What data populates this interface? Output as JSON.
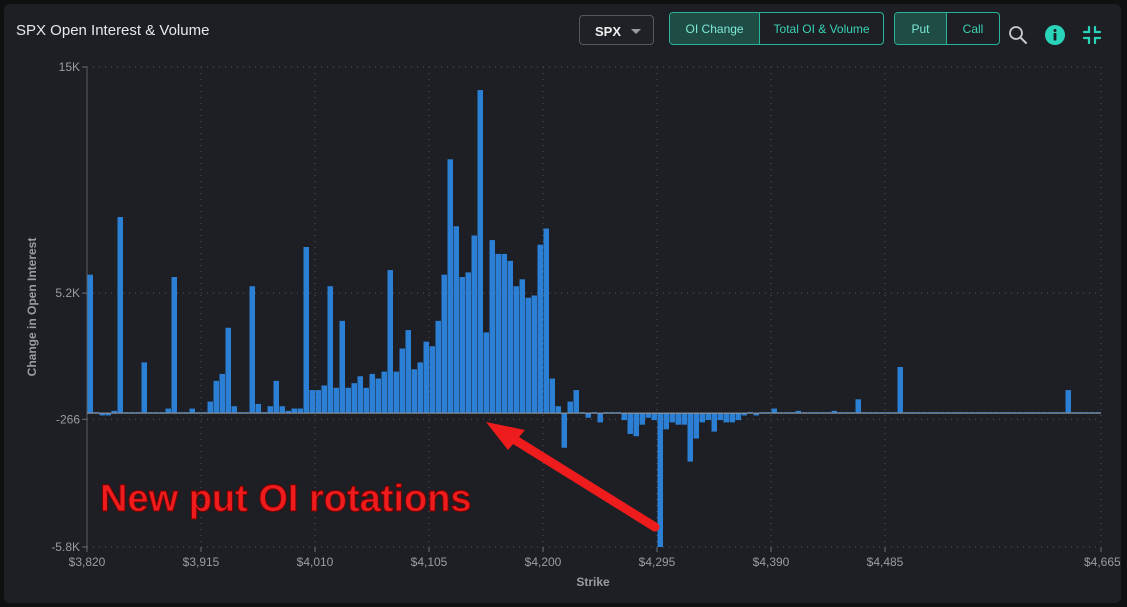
{
  "header": {
    "title": "SPX Open Interest & Volume",
    "ticker": "SPX",
    "view_toggle": {
      "options": [
        "OI Change",
        "Total OI & Volume"
      ],
      "selected": "OI Change"
    },
    "type_toggle": {
      "options": [
        "Put",
        "Call"
      ],
      "selected": "Put"
    },
    "icons": [
      "zoom-icon",
      "info-icon",
      "collapse-icon"
    ],
    "colors": {
      "accent": "#2bb39a",
      "info": "#2ad4b8"
    }
  },
  "chart_data": {
    "type": "bar",
    "xlabel": "Strike",
    "ylabel": "Change in Open Interest",
    "ylim": [
      -5800,
      15000
    ],
    "xlim": [
      3820,
      4665
    ],
    "x_ticks": [
      3820,
      3915,
      4010,
      4105,
      4200,
      4295,
      4390,
      4485,
      4665
    ],
    "x_tick_labels": [
      "$3,820",
      "$3,915",
      "$4,010",
      "$4,105",
      "$4,200",
      "$4,295",
      "$4,390",
      "$4,485",
      "$4,665"
    ],
    "y_ticks": [
      -5800,
      -266,
      5200,
      15000
    ],
    "y_tick_labels": [
      "-5.8K",
      "-266",
      "5.2K",
      "15K"
    ],
    "grid": true,
    "bar_color": "#2b7fd4",
    "annotation": {
      "text": "New put OI rotations",
      "color": "#ee1c1c"
    },
    "strikes": [
      3820,
      3825,
      3830,
      3835,
      3840,
      3845,
      3850,
      3855,
      3860,
      3865,
      3870,
      3875,
      3880,
      3885,
      3890,
      3895,
      3900,
      3905,
      3910,
      3915,
      3920,
      3925,
      3930,
      3935,
      3940,
      3945,
      3950,
      3955,
      3960,
      3965,
      3970,
      3975,
      3980,
      3985,
      3990,
      3995,
      4000,
      4005,
      4010,
      4015,
      4020,
      4025,
      4030,
      4035,
      4040,
      4045,
      4050,
      4055,
      4060,
      4065,
      4070,
      4075,
      4080,
      4085,
      4090,
      4095,
      4100,
      4105,
      4110,
      4115,
      4120,
      4125,
      4130,
      4135,
      4140,
      4145,
      4150,
      4155,
      4160,
      4165,
      4170,
      4175,
      4180,
      4185,
      4190,
      4195,
      4200,
      4205,
      4210,
      4215,
      4220,
      4225,
      4230,
      4235,
      4240,
      4245,
      4250,
      4255,
      4260,
      4265,
      4270,
      4275,
      4280,
      4285,
      4290,
      4295,
      4300,
      4305,
      4310,
      4315,
      4320,
      4325,
      4330,
      4335,
      4340,
      4345,
      4350,
      4355,
      4360,
      4365,
      4370,
      4375,
      4380,
      4385,
      4390,
      4395,
      4400,
      4405,
      4410,
      4415,
      4420,
      4425,
      4430,
      4435,
      4440,
      4445,
      4450,
      4455,
      4460,
      4465,
      4470,
      4475,
      4480,
      4485,
      4490,
      4495,
      4500,
      4505,
      4510,
      4515,
      4520,
      4525,
      4530,
      4535,
      4540,
      4545,
      4550,
      4555,
      4560,
      4565,
      4570,
      4575,
      4580,
      4585,
      4590,
      4595,
      4600,
      4605,
      4610,
      4615,
      4620,
      4625,
      4630,
      4635,
      4640,
      4645,
      4650,
      4655,
      4660
    ],
    "values": [
      6000,
      0,
      -100,
      -100,
      100,
      8500,
      0,
      0,
      0,
      2200,
      0,
      0,
      0,
      200,
      5900,
      0,
      0,
      200,
      0,
      0,
      500,
      1400,
      1700,
      3700,
      300,
      0,
      0,
      5500,
      400,
      0,
      300,
      1400,
      300,
      100,
      200,
      200,
      7200,
      1000,
      1000,
      1200,
      5500,
      1100,
      4000,
      1100,
      1300,
      1600,
      1100,
      1700,
      1500,
      1800,
      6200,
      1800,
      2800,
      3600,
      1900,
      2200,
      3100,
      2900,
      4000,
      6000,
      11000,
      8100,
      5900,
      6100,
      7700,
      14000,
      3500,
      7500,
      6900,
      6900,
      6600,
      5500,
      5800,
      5000,
      5100,
      7300,
      8000,
      1500,
      300,
      -1500,
      500,
      1000,
      0,
      -200,
      0,
      -400,
      0,
      0,
      0,
      -300,
      -900,
      -1000,
      -500,
      -200,
      -300,
      -5800,
      -700,
      -400,
      -500,
      -500,
      -2100,
      -1100,
      -400,
      -300,
      -800,
      -300,
      -400,
      -400,
      -300,
      -100,
      0,
      -100,
      0,
      0,
      200,
      0,
      0,
      0,
      100,
      0,
      0,
      0,
      0,
      0,
      100,
      0,
      0,
      0,
      600,
      0,
      0,
      0,
      0,
      0,
      0,
      2000,
      0,
      0,
      0,
      0,
      0,
      0,
      0,
      0,
      0,
      0,
      0,
      0,
      0,
      0,
      0,
      0,
      0,
      0,
      0,
      0,
      0,
      0,
      0,
      0,
      0,
      0,
      0,
      1000,
      0,
      0,
      0,
      0,
      0,
      0,
      0,
      0,
      0,
      0,
      0
    ]
  }
}
